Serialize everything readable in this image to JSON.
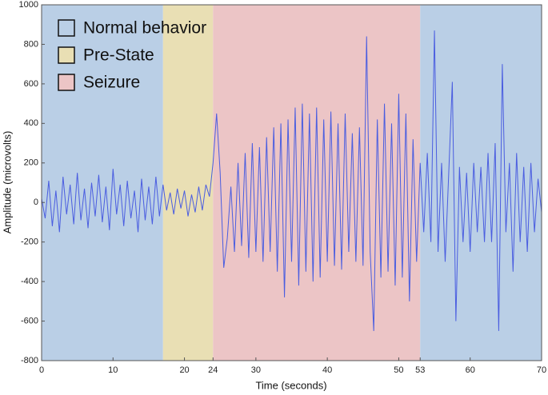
{
  "chart_data": {
    "type": "line",
    "x_label": "Time (seconds)",
    "y_label": "Amplitude (microvolts)",
    "xlim": [
      0,
      70
    ],
    "ylim": [
      -800,
      1000
    ],
    "xticks": [
      0,
      10,
      20,
      24,
      30,
      40,
      50,
      53,
      60,
      70
    ],
    "yticks": [
      -800,
      -600,
      -400,
      -200,
      0,
      200,
      400,
      600,
      800,
      1000
    ],
    "legend": [
      {
        "name": "Normal behavior",
        "color": "#bacfe6"
      },
      {
        "name": "Pre-State",
        "color": "#e9dfb4"
      },
      {
        "name": "Seizure",
        "color": "#ecc5c6"
      }
    ],
    "regions": [
      {
        "x": [
          0,
          17
        ],
        "color": "#bacfe6"
      },
      {
        "x": [
          17,
          24
        ],
        "color": "#e9dfb4"
      },
      {
        "x": [
          24,
          53
        ],
        "color": "#ecc5c6"
      },
      {
        "x": [
          53,
          70
        ],
        "color": "#bacfe6"
      }
    ],
    "x": [
      0,
      0.5,
      1,
      1.5,
      2,
      2.5,
      3,
      3.5,
      4,
      4.5,
      5,
      5.5,
      6,
      6.5,
      7,
      7.5,
      8,
      8.5,
      9,
      9.5,
      10,
      10.5,
      11,
      11.5,
      12,
      12.5,
      13,
      13.5,
      14,
      14.5,
      15,
      15.5,
      16,
      16.5,
      17,
      17.5,
      18,
      18.5,
      19,
      19.5,
      20,
      20.5,
      21,
      21.5,
      22,
      22.5,
      23,
      23.5,
      24,
      24.5,
      25,
      25.5,
      26,
      26.5,
      27,
      27.5,
      28,
      28.5,
      29,
      29.5,
      30,
      30.5,
      31,
      31.5,
      32,
      32.5,
      33,
      33.5,
      34,
      34.5,
      35,
      35.5,
      36,
      36.5,
      37,
      37.5,
      38,
      38.5,
      39,
      39.5,
      40,
      40.5,
      41,
      41.5,
      42,
      42.5,
      43,
      43.5,
      44,
      44.5,
      45,
      45.5,
      46,
      46.5,
      47,
      47.5,
      48,
      48.5,
      49,
      49.5,
      50,
      50.5,
      51,
      51.5,
      52,
      52.5,
      53,
      53.5,
      54,
      54.5,
      55,
      55.5,
      56,
      56.5,
      57,
      57.5,
      58,
      58.5,
      59,
      59.5,
      60,
      60.5,
      61,
      61.5,
      62,
      62.5,
      63,
      63.5,
      64,
      64.5,
      65,
      65.5,
      66,
      66.5,
      67,
      67.5,
      68,
      68.5,
      69,
      69.5,
      70
    ],
    "series": [
      {
        "color": "#4a5de0",
        "values": [
          20,
          -80,
          110,
          -120,
          60,
          -150,
          130,
          -60,
          90,
          -110,
          150,
          -90,
          70,
          -130,
          100,
          -70,
          140,
          -100,
          80,
          -140,
          170,
          -60,
          90,
          -120,
          110,
          -80,
          60,
          -150,
          120,
          -90,
          80,
          -110,
          130,
          -70,
          90,
          -40,
          50,
          -60,
          70,
          -30,
          60,
          -70,
          40,
          -50,
          80,
          -40,
          90,
          30,
          200,
          450,
          150,
          -330,
          -180,
          80,
          -250,
          200,
          -220,
          250,
          -280,
          300,
          -250,
          280,
          -300,
          330,
          -250,
          380,
          -350,
          400,
          -480,
          420,
          -300,
          480,
          -420,
          500,
          -350,
          450,
          -400,
          480,
          -380,
          420,
          -300,
          460,
          -320,
          400,
          -340,
          450,
          -250,
          350,
          -300,
          380,
          -320,
          840,
          -250,
          -650,
          420,
          -380,
          500,
          -350,
          400,
          -420,
          550,
          -380,
          450,
          -500,
          320,
          -300,
          200,
          -150,
          250,
          -200,
          870,
          -250,
          200,
          -300,
          150,
          610,
          -600,
          180,
          -200,
          150,
          -250,
          200,
          -150,
          180,
          -200,
          250,
          -200,
          300,
          -650,
          700,
          -150,
          200,
          -350,
          250,
          -200,
          180,
          -250,
          200,
          -150,
          120,
          -50
        ]
      }
    ]
  }
}
